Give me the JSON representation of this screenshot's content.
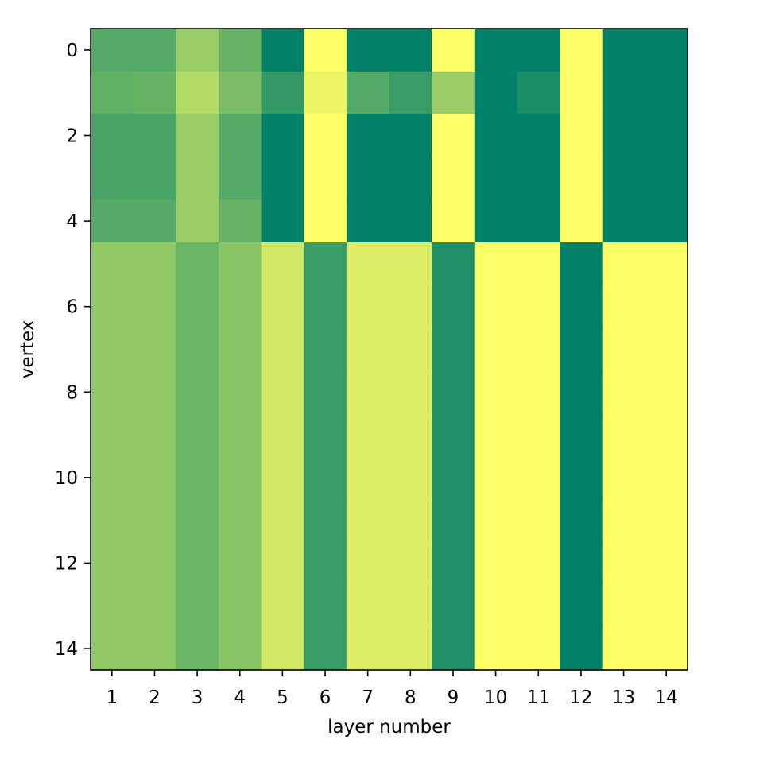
{
  "chart_data": {
    "type": "heatmap",
    "title": "",
    "xlabel": "layer number",
    "ylabel": "vertex",
    "x": [
      1,
      2,
      3,
      4,
      5,
      6,
      7,
      8,
      9,
      10,
      11,
      12,
      13,
      14
    ],
    "y": [
      0,
      1,
      2,
      3,
      4,
      5,
      6,
      7,
      8,
      9,
      10,
      11,
      12,
      13,
      14
    ],
    "xticks": [
      1,
      2,
      3,
      4,
      5,
      6,
      7,
      8,
      9,
      10,
      11,
      12,
      13,
      14
    ],
    "yticks": [
      0,
      2,
      4,
      6,
      8,
      10,
      12,
      14
    ],
    "colormap": "summer",
    "vrange": [
      0,
      1
    ],
    "values": [
      [
        0.33,
        0.33,
        0.6,
        0.4,
        0.0,
        1.0,
        0.0,
        0.0,
        1.0,
        0.0,
        0.0,
        1.0,
        0.0,
        0.0
      ],
      [
        0.38,
        0.4,
        0.7,
        0.48,
        0.2,
        0.92,
        0.33,
        0.22,
        0.6,
        0.0,
        0.1,
        1.0,
        0.0,
        0.0
      ],
      [
        0.28,
        0.28,
        0.6,
        0.33,
        0.0,
        1.0,
        0.0,
        0.0,
        1.0,
        0.0,
        0.0,
        1.0,
        0.0,
        0.0
      ],
      [
        0.28,
        0.28,
        0.6,
        0.33,
        0.0,
        1.0,
        0.0,
        0.0,
        1.0,
        0.0,
        0.0,
        1.0,
        0.0,
        0.0
      ],
      [
        0.33,
        0.33,
        0.6,
        0.4,
        0.0,
        1.0,
        0.0,
        0.0,
        1.0,
        0.0,
        0.0,
        1.0,
        0.0,
        0.0
      ],
      [
        0.57,
        0.57,
        0.42,
        0.54,
        0.82,
        0.22,
        0.87,
        0.87,
        0.12,
        1.0,
        1.0,
        0.0,
        1.0,
        1.0
      ],
      [
        0.57,
        0.57,
        0.42,
        0.54,
        0.82,
        0.22,
        0.87,
        0.87,
        0.12,
        1.0,
        1.0,
        0.0,
        1.0,
        1.0
      ],
      [
        0.57,
        0.57,
        0.42,
        0.54,
        0.82,
        0.22,
        0.87,
        0.87,
        0.12,
        1.0,
        1.0,
        0.0,
        1.0,
        1.0
      ],
      [
        0.57,
        0.57,
        0.42,
        0.54,
        0.82,
        0.22,
        0.87,
        0.87,
        0.12,
        1.0,
        1.0,
        0.0,
        1.0,
        1.0
      ],
      [
        0.57,
        0.57,
        0.42,
        0.54,
        0.82,
        0.22,
        0.87,
        0.87,
        0.12,
        1.0,
        1.0,
        0.0,
        1.0,
        1.0
      ],
      [
        0.57,
        0.57,
        0.42,
        0.54,
        0.82,
        0.22,
        0.87,
        0.87,
        0.12,
        1.0,
        1.0,
        0.0,
        1.0,
        1.0
      ],
      [
        0.57,
        0.57,
        0.42,
        0.54,
        0.82,
        0.22,
        0.87,
        0.87,
        0.12,
        1.0,
        1.0,
        0.0,
        1.0,
        1.0
      ],
      [
        0.57,
        0.57,
        0.42,
        0.54,
        0.82,
        0.22,
        0.87,
        0.87,
        0.12,
        1.0,
        1.0,
        0.0,
        1.0,
        1.0
      ],
      [
        0.57,
        0.57,
        0.42,
        0.54,
        0.82,
        0.22,
        0.87,
        0.87,
        0.12,
        1.0,
        1.0,
        0.0,
        1.0,
        1.0
      ],
      [
        0.57,
        0.57,
        0.42,
        0.54,
        0.82,
        0.22,
        0.87,
        0.87,
        0.12,
        1.0,
        1.0,
        0.0,
        1.0,
        1.0
      ]
    ],
    "colors": {
      "low": "#008066",
      "high": "#ffff66"
    },
    "grid": false,
    "legend": "none"
  }
}
